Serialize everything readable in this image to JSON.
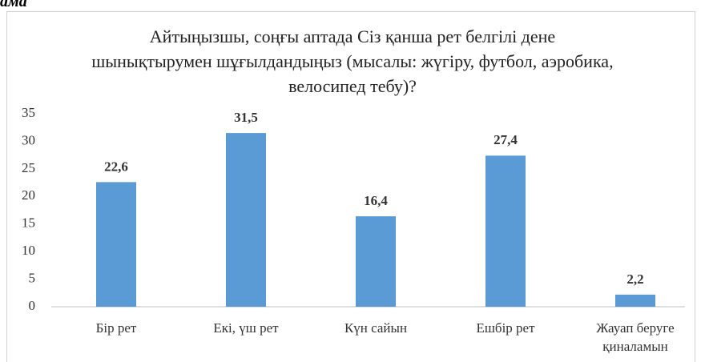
{
  "caption": "ама",
  "chart_data": {
    "type": "bar",
    "title": "Айтыңызшы, соңғы аптада Сіз қанша рет белгілі дене шынықтырумен шұғылдандыңыз (мысалы: жүгіру, футбол, аэробика, велосипед тебу)?",
    "categories": [
      "Бір рет",
      "Екі,  үш рет",
      "Күн сайын",
      "Ешбір рет",
      "Жауап беруге қиналамын"
    ],
    "values": [
      22.6,
      31.5,
      16.4,
      27.4,
      2.2
    ],
    "value_labels": [
      "22,6",
      "31,5",
      "16,4",
      "27,4",
      "2,2"
    ],
    "color": "#5b9bd5",
    "ylim": [
      0,
      35
    ],
    "yticks": [
      0,
      5,
      10,
      15,
      20,
      25,
      30,
      35
    ],
    "grid": false
  }
}
